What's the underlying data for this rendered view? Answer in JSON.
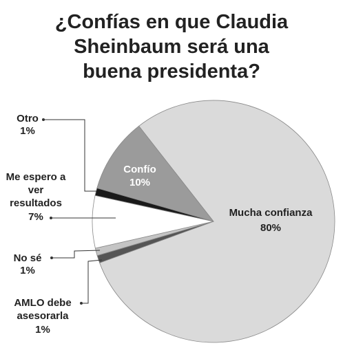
{
  "chart_data": {
    "type": "pie",
    "title": "¿Confías en que Claudia Sheinbaum será una buena presidenta?",
    "categories": [
      "Mucha confianza",
      "AMLO debe asesorarla",
      "No sé",
      "Me espero a ver resultados",
      "Otro",
      "Confío"
    ],
    "values": [
      80,
      1,
      1,
      7,
      1,
      10
    ],
    "value_labels": [
      "80%",
      "1%",
      "1%",
      "7%",
      "1%",
      "10%"
    ],
    "colors": [
      "#dadada",
      "#555555",
      "#c4c4c4",
      "#ffffff",
      "#1a1a1a",
      "#9b9b9b"
    ]
  }
}
